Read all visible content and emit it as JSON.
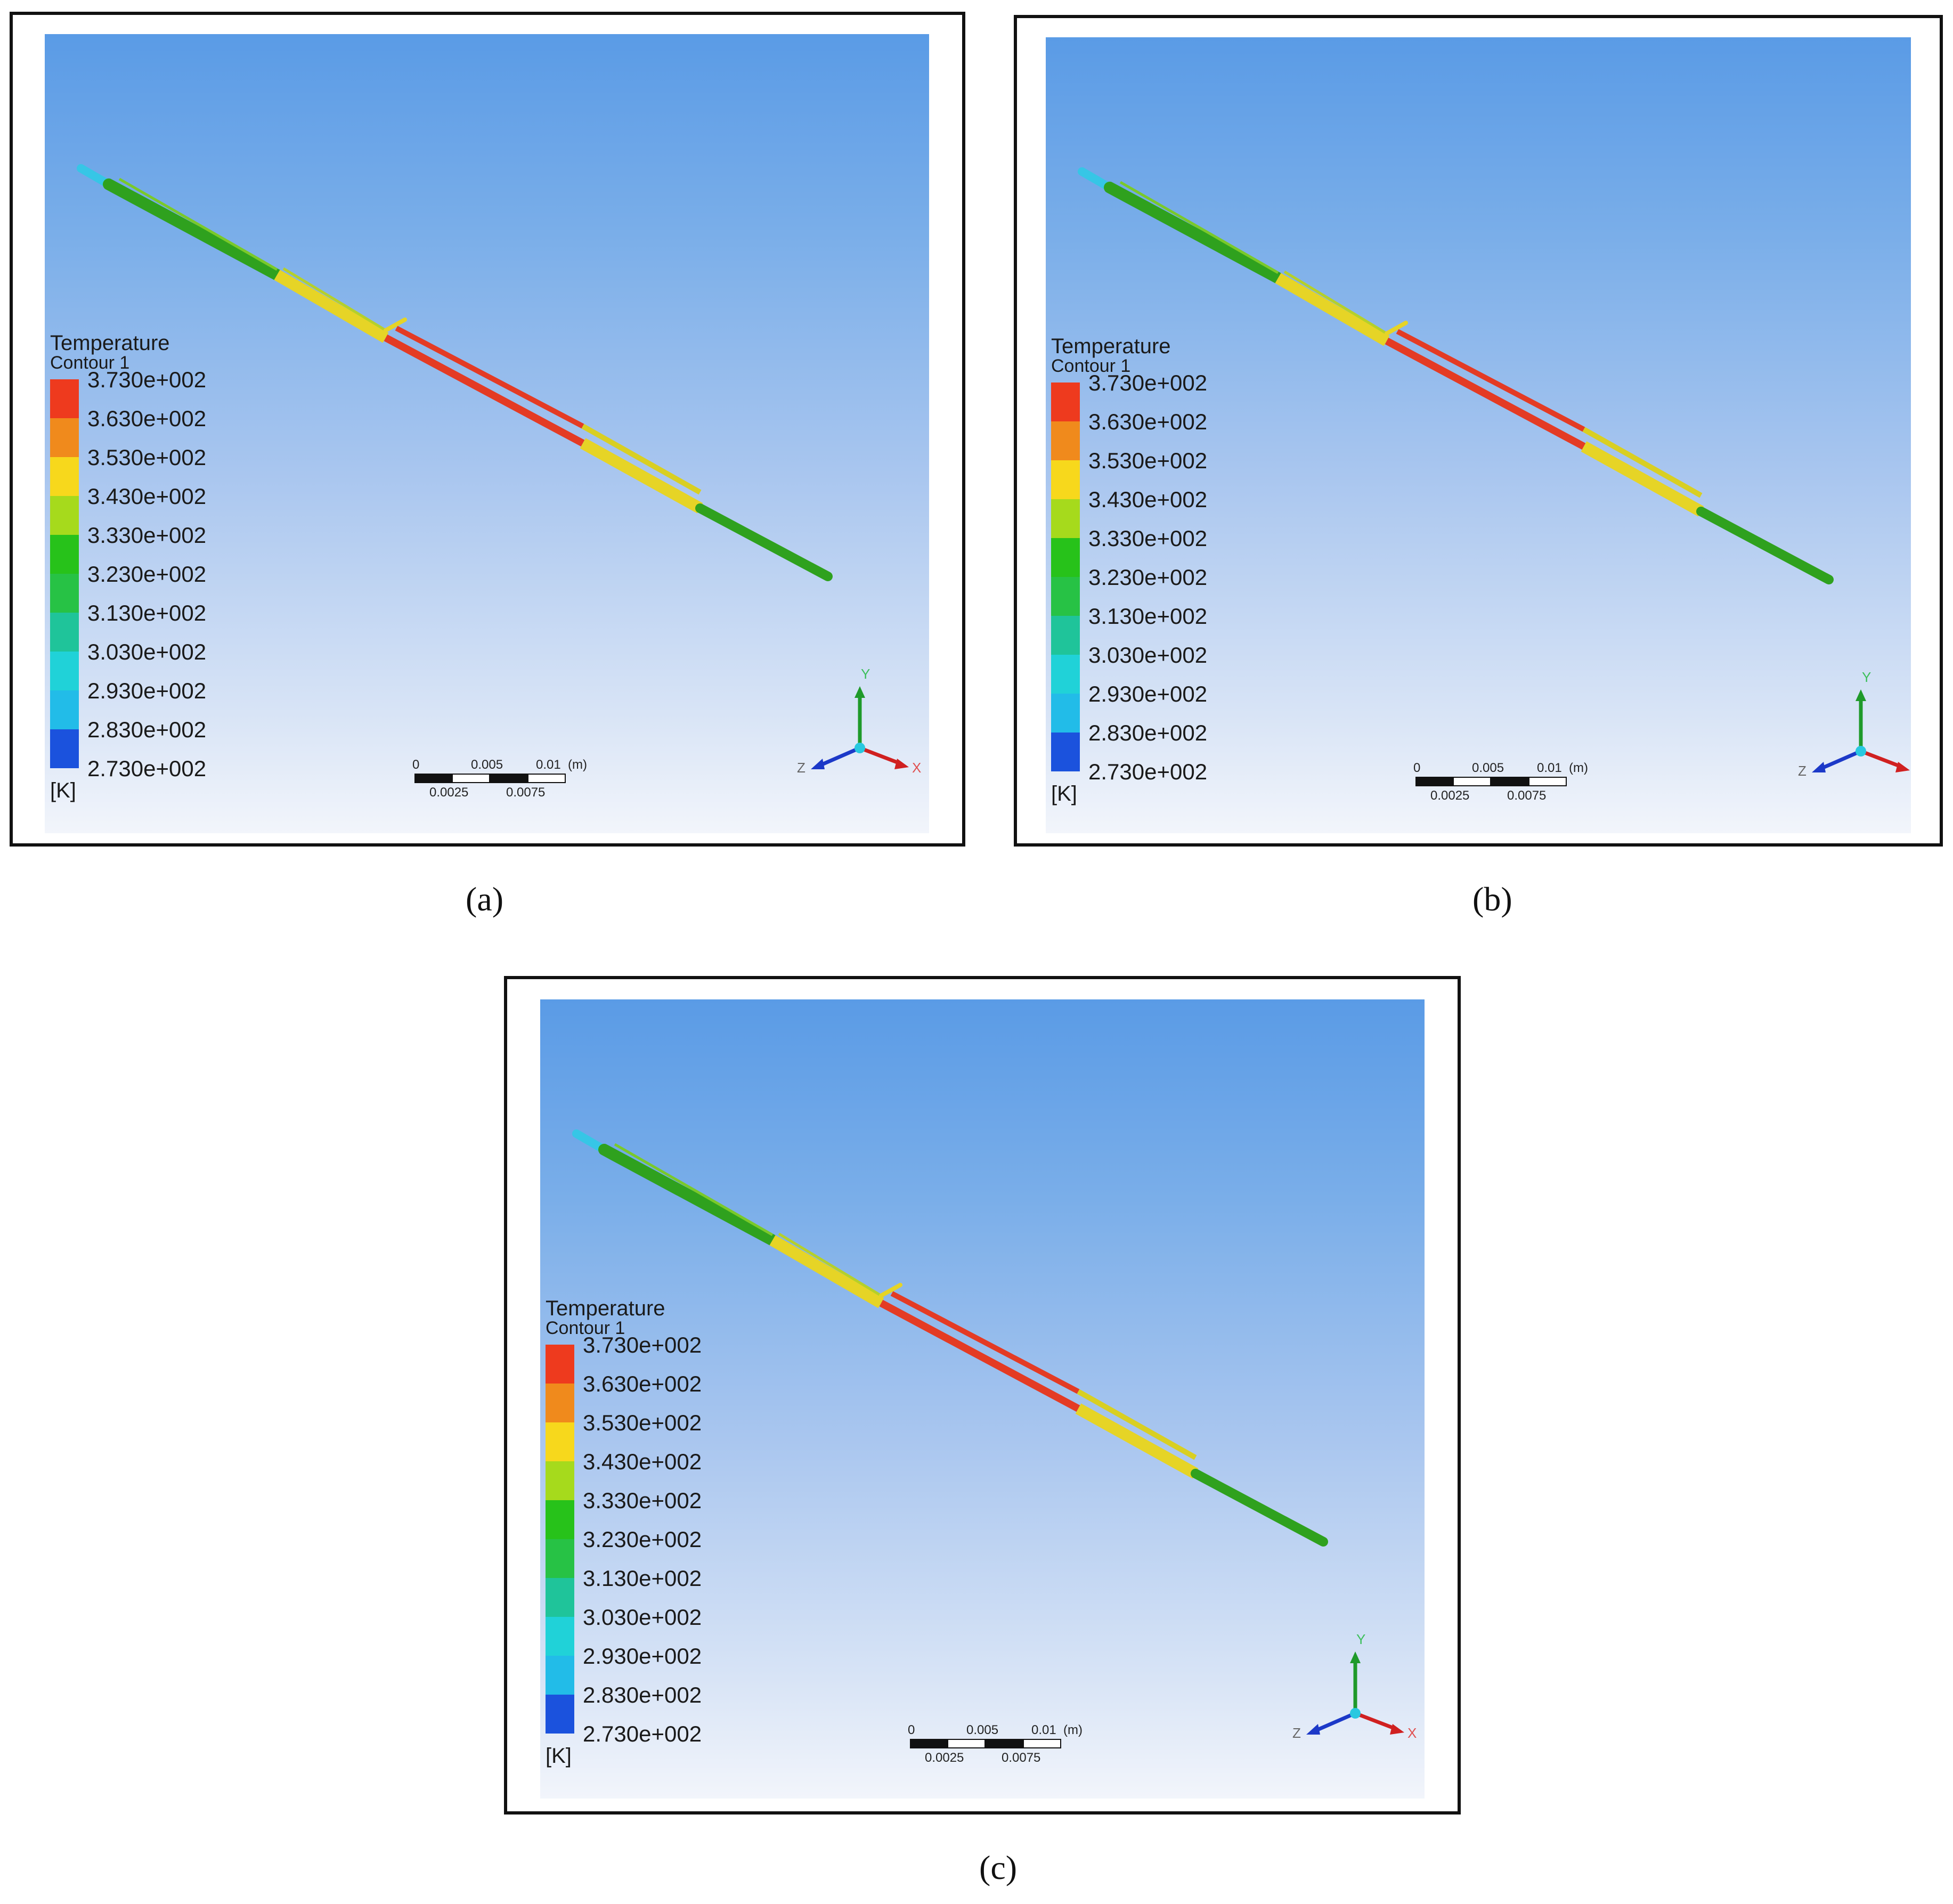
{
  "panels": [
    {
      "caption": "(a)",
      "legend": {
        "title": "Temperature",
        "subtitle": "Contour 1",
        "ticks": [
          "3.730e+002",
          "3.630e+002",
          "3.530e+002",
          "3.430e+002",
          "3.330e+002",
          "3.230e+002",
          "3.130e+002",
          "3.030e+002",
          "2.930e+002",
          "2.830e+002",
          "2.730e+002"
        ],
        "unit": "[K]"
      },
      "scale": {
        "top_labels": [
          "0",
          "0.005",
          "0.01"
        ],
        "unit": "(m)",
        "bottom_labels": [
          "0.0025",
          "0.0075"
        ]
      },
      "axes": {
        "x": "X",
        "y": "Y",
        "z": "Z"
      }
    },
    {
      "caption": "(b)",
      "legend": {
        "title": "Temperature",
        "subtitle": "Contour 1",
        "ticks": [
          "3.730e+002",
          "3.630e+002",
          "3.530e+002",
          "3.430e+002",
          "3.330e+002",
          "3.230e+002",
          "3.130e+002",
          "3.030e+002",
          "2.930e+002",
          "2.830e+002",
          "2.730e+002"
        ],
        "unit": "[K]"
      },
      "scale": {
        "top_labels": [
          "0",
          "0.005",
          "0.01"
        ],
        "unit": "(m)",
        "bottom_labels": [
          "0.0025",
          "0.0075"
        ]
      },
      "axes": {
        "x": "X",
        "y": "Y",
        "z": "Z"
      }
    },
    {
      "caption": "(c)",
      "legend": {
        "title": "Temperature",
        "subtitle": "Contour 1",
        "ticks": [
          "3.730e+002",
          "3.630e+002",
          "3.530e+002",
          "3.430e+002",
          "3.330e+002",
          "3.230e+002",
          "3.130e+002",
          "3.030e+002",
          "2.930e+002",
          "2.830e+002",
          "2.730e+002"
        ],
        "unit": "[K]"
      },
      "scale": {
        "top_labels": [
          "0",
          "0.005",
          "0.01"
        ],
        "unit": "(m)",
        "bottom_labels": [
          "0.0025",
          "0.0075"
        ]
      },
      "axes": {
        "x": "X",
        "y": "Y",
        "z": "Z"
      }
    }
  ],
  "colormap": [
    "#ee3a1e",
    "#f08a1c",
    "#f7d81c",
    "#a6da1c",
    "#27c21a",
    "#27c245",
    "#1fc49a",
    "#20d2d8",
    "#22bce8",
    "#1e90e0",
    "#1b52dd"
  ],
  "contour_colors": {
    "inlet": "#36c6e6",
    "green": "#2fa11e",
    "yellow": "#e6d426",
    "red": "#e43b24"
  }
}
